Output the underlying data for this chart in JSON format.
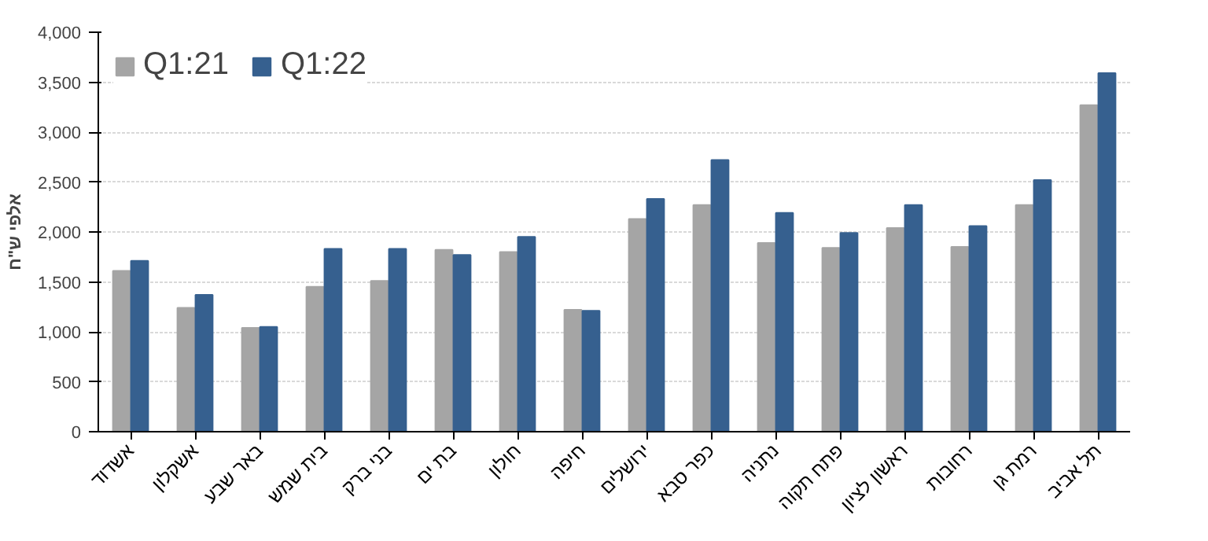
{
  "chart_data": {
    "type": "bar",
    "ylabel": "אלפי ש\"ח",
    "categories": [
      "אשדוד",
      "אשקלון",
      "באר שבע",
      "בית שמש",
      "בני ברק",
      "בת ים",
      "חולון",
      "חיפה",
      "ירושלים",
      "כפר סבא",
      "נתניה",
      "פתח תקוה",
      "ראשון לציון",
      "רחובות",
      "רמת גן",
      "תל אביב"
    ],
    "series": [
      {
        "name": "Q1:21",
        "color": "#a5a5a5",
        "values": [
          1610,
          1240,
          1040,
          1450,
          1510,
          1820,
          1800,
          1220,
          2130,
          2270,
          1890,
          1840,
          2040,
          1850,
          2270,
          3270
        ]
      },
      {
        "name": "Q1:22",
        "color": "#36608f",
        "values": [
          1710,
          1370,
          1050,
          1830,
          1830,
          1770,
          1950,
          1210,
          2330,
          2720,
          2190,
          1990,
          2270,
          2060,
          2520,
          3590
        ]
      }
    ],
    "ylim": [
      0,
      4000
    ],
    "yticks": [
      0,
      {
        "value": 500,
        "label": "500"
      },
      {
        "value": 1000,
        "label": "1,000"
      },
      {
        "value": 1500,
        "label": "1,500"
      },
      {
        "value": 2000,
        "label": "2,000"
      },
      {
        "value": 2500,
        "label": "2,500"
      },
      {
        "value": 3000,
        "label": "3,000"
      },
      {
        "value": 3500,
        "label": "3,500"
      },
      {
        "value": 4000,
        "label": "4,000"
      }
    ],
    "grid": "y",
    "legend": "top left"
  }
}
